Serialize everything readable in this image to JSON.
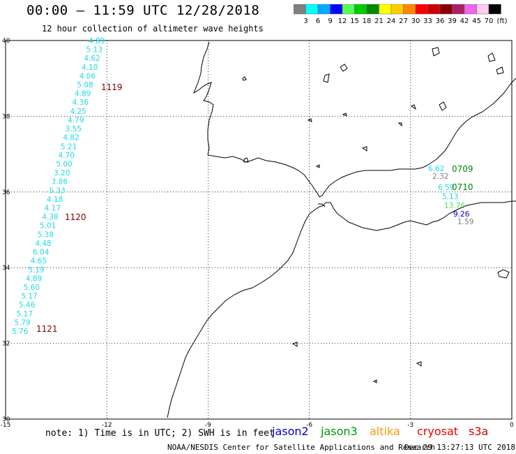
{
  "title": "00:00 – 11:59 UTC 12/28/2018",
  "subtitle": "12 hour collection of altimeter wave heights",
  "colorbar": {
    "unit_label": "(ft)",
    "bins": [
      {
        "label": "3",
        "color": "#7f7f7f"
      },
      {
        "label": "6",
        "color": "#00ffff"
      },
      {
        "label": "9",
        "color": "#00aaff"
      },
      {
        "label": "12",
        "color": "#0000ff"
      },
      {
        "label": "15",
        "color": "#55ff55"
      },
      {
        "label": "18",
        "color": "#00cc00"
      },
      {
        "label": "21",
        "color": "#008800"
      },
      {
        "label": "24",
        "color": "#ffff00"
      },
      {
        "label": "27",
        "color": "#ffcc00"
      },
      {
        "label": "30",
        "color": "#ff8800"
      },
      {
        "label": "33",
        "color": "#ff0000"
      },
      {
        "label": "36",
        "color": "#cc0000"
      },
      {
        "label": "39",
        "color": "#8b0000"
      },
      {
        "label": "42",
        "color": "#aa2266"
      },
      {
        "label": "45",
        "color": "#ee66ee"
      },
      {
        "label": "70",
        "color": "#ffccee"
      },
      {
        "label": "",
        "color": "#000000"
      }
    ]
  },
  "axes": {
    "x_ticks": [
      "-15",
      "-12",
      "-9",
      "-6",
      "-3",
      "0"
    ],
    "y_ticks": [
      "40",
      "38",
      "36",
      "34",
      "32",
      "30"
    ],
    "lon_range": [
      -15,
      0
    ],
    "lat_range": [
      30,
      40
    ]
  },
  "tracks": {
    "track_a": {
      "color": "#1fd8e8",
      "values": [
        "4.89",
        "5.13",
        "4.62",
        "4.10",
        "4.06",
        "5.08",
        "4.89",
        "4.36",
        "4.25",
        "4.79",
        "3.55",
        "4.82",
        "5.21",
        "4.70",
        "5.00",
        "3.20",
        "3.86",
        "5.33",
        "4.18",
        "4.17",
        "4.38",
        "5.01",
        "5.38",
        "4.48",
        "6.04",
        "4.65",
        "5.19",
        "4.89",
        "5.60",
        "5.17",
        "5.46",
        "5.17",
        "5.79",
        "5.76"
      ]
    },
    "time_labels_a": [
      {
        "label": "1119",
        "color": "#7b0000"
      },
      {
        "label": "1120",
        "color": "#7b0000"
      },
      {
        "label": "1121",
        "color": "#7b0000"
      }
    ],
    "med_points": [
      {
        "value": "6.62",
        "color": "#1fd8e8"
      },
      {
        "value": "2.32",
        "color": "#7f7f7f"
      },
      {
        "value": "6.59",
        "color": "#1fd8e8"
      },
      {
        "value": "5.13",
        "color": "#1fd8e8"
      },
      {
        "value": "13.76",
        "color": "#55dd55"
      },
      {
        "value": "9.26",
        "color": "#0000cc"
      },
      {
        "value": "1.59",
        "color": "#7f7f7f"
      }
    ],
    "time_labels_med": [
      {
        "label": "0709",
        "color": "#008800"
      },
      {
        "label": "0710",
        "color": "#008800"
      }
    ]
  },
  "footer": {
    "note": "note: 1) Time is in UTC; 2) SWH is in feet",
    "satellites": [
      {
        "name": "jason2",
        "color": "#0000cc"
      },
      {
        "name": "jason3",
        "color": "#009900"
      },
      {
        "name": "altika",
        "color": "#ff9900"
      },
      {
        "name": "cryosat",
        "color": "#ee0000"
      },
      {
        "name": "s3a",
        "color": "#cc0000"
      }
    ],
    "credit": "NOAA/NESDIS Center for Satellite Applications and Research",
    "timestamp": "Dec 29 13:27:13 UTC 2018"
  }
}
